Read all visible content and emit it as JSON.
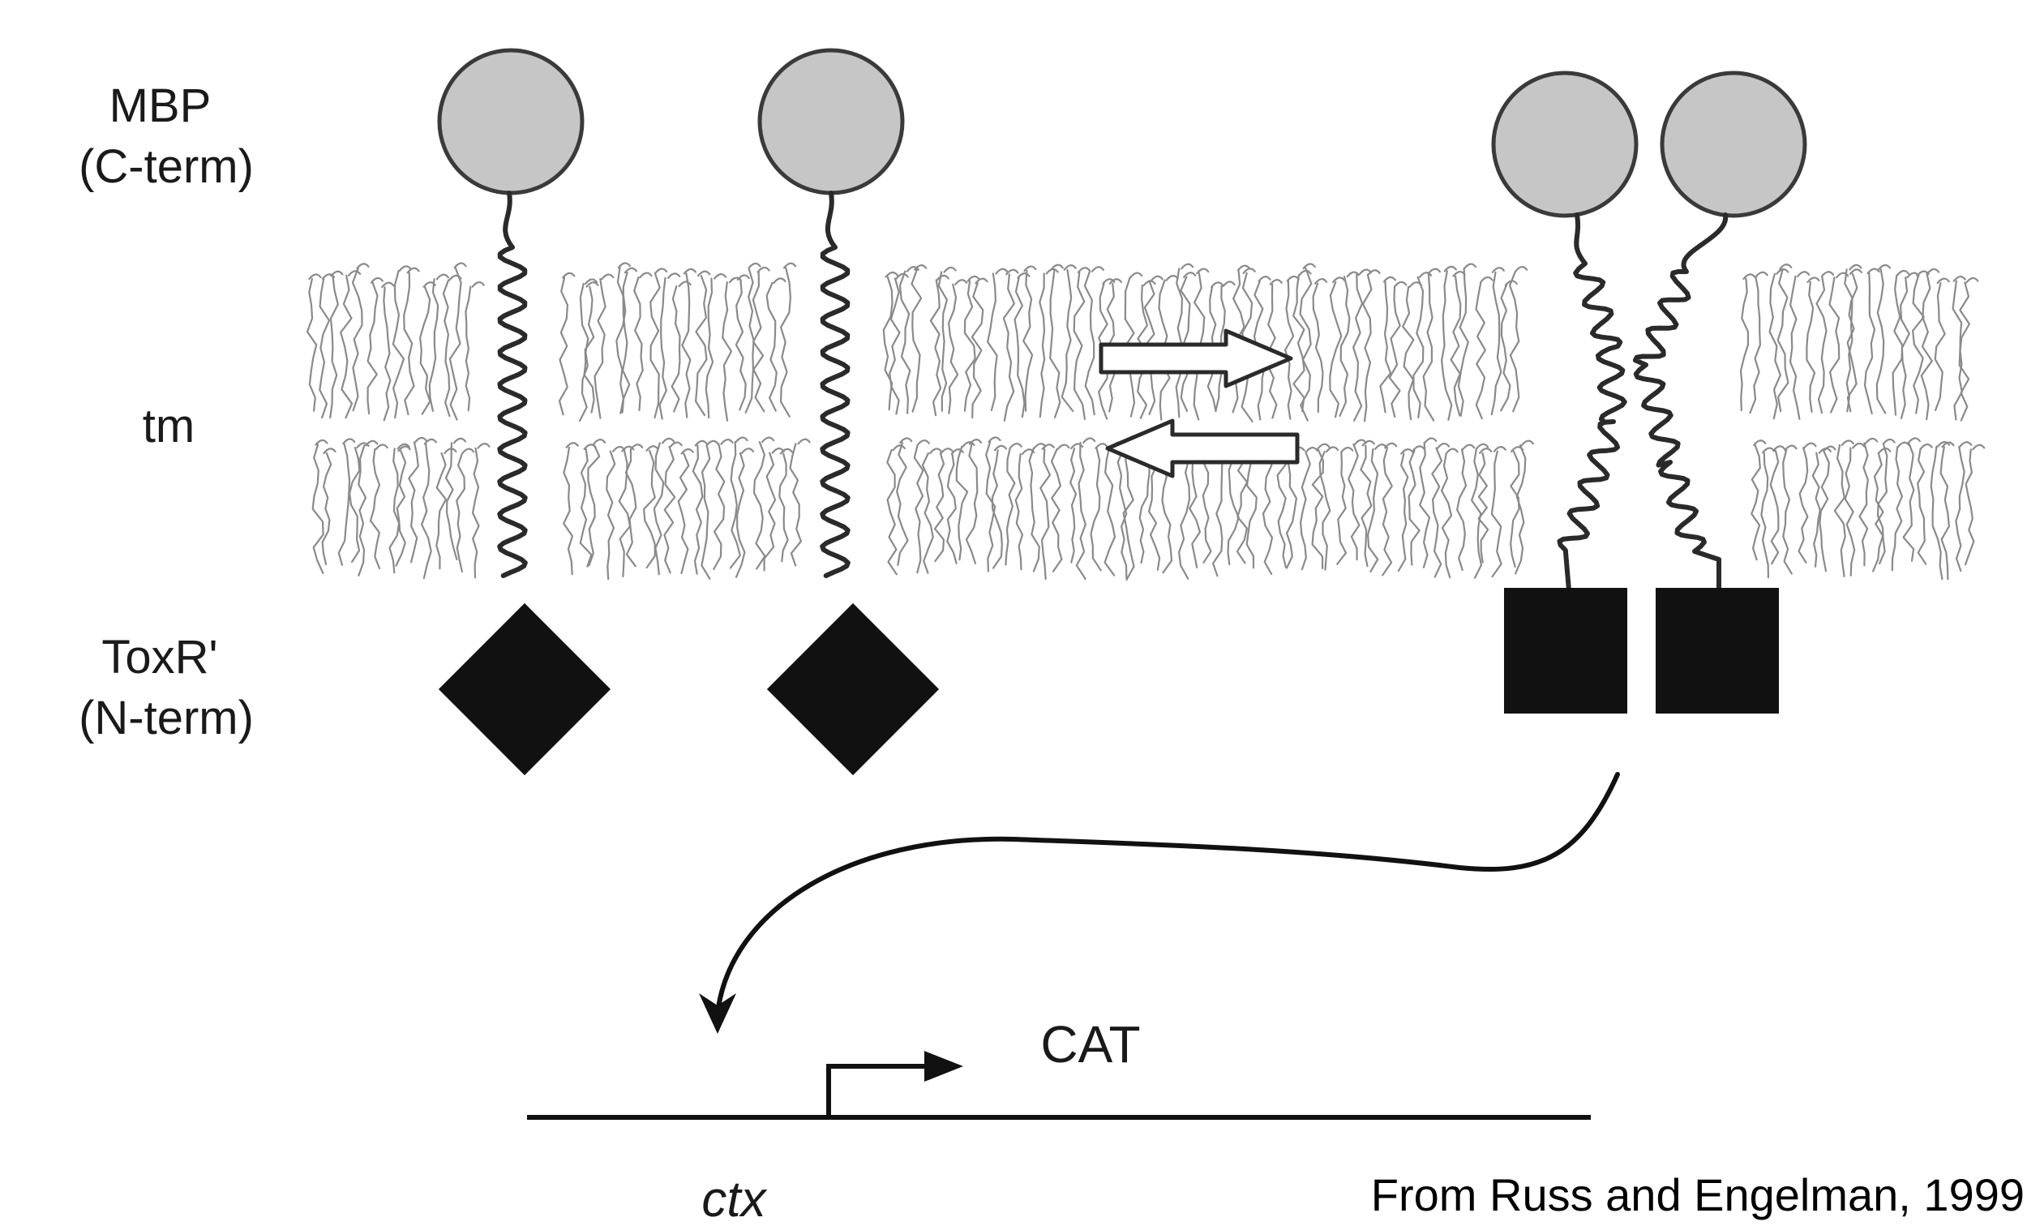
{
  "labels": {
    "mbp_line1": "MBP",
    "mbp_line2": "(C-term)",
    "tm": "tm",
    "toxr_line1": "ToxR'",
    "toxr_line2": "(N-term)",
    "cat": "CAT",
    "ctx": "ctx",
    "citation": "From Russ and Engelman, 1999"
  },
  "colors": {
    "mbp_fill": "#c6c6c6",
    "mbp_stroke": "#3a3a3a",
    "toxr_fill": "#111111",
    "lipid_stroke": "#8a8a8a",
    "helix_stroke": "#2a2a2a"
  },
  "icons": {
    "equilibrium": "double-arrow-icon",
    "transcription_start": "bent-arrow-icon"
  }
}
